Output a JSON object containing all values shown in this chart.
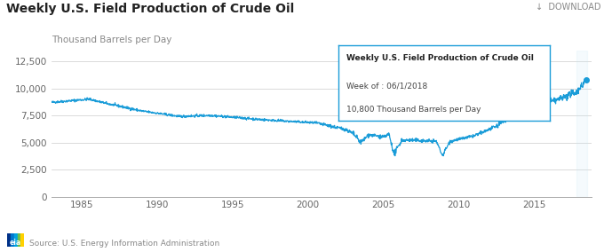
{
  "title": "Weekly U.S. Field Production of Crude Oil",
  "ylabel": "Thousand Barrels per Day",
  "download_label": "↓  DOWNLOAD",
  "source_label": "Source: U.S. Energy Information Administration",
  "legend_label": "—  Weekly U.S. Field Production of Crude Oil",
  "tooltip_title": "Weekly U.S. Field Production of Crude Oil",
  "tooltip_week": "Week of : 06/1/2018",
  "tooltip_value": "10,800 Thousand Barrels per Day",
  "line_color": "#1a9cd8",
  "tooltip_highlight_color": "#c8e8f5",
  "bg_color": "#ffffff",
  "grid_color": "#cccccc",
  "ylim": [
    0,
    13500
  ],
  "yticks": [
    0,
    2500,
    5000,
    7500,
    10000,
    12500
  ],
  "xlabel_years": [
    1985,
    1990,
    1995,
    2000,
    2005,
    2010,
    2015
  ],
  "title_fontsize": 10,
  "ylabel_fontsize": 7.5,
  "axis_fontsize": 7.5,
  "source_fontsize": 6.5,
  "download_fontsize": 7
}
